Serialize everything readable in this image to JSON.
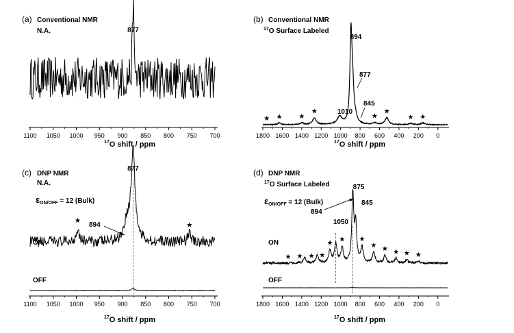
{
  "colors": {
    "trace": "#000000",
    "axis": "#000000",
    "ref_line": "#555555"
  },
  "chart_data": [
    {
      "type": "line",
      "panel": "(a)",
      "title": "Conventional NMR",
      "subtitle": "N.A.",
      "xlabel_sup": "17",
      "xlabel": "O shift / ppm",
      "xlim": [
        1100,
        700
      ],
      "x_reversed": true,
      "xticks": [
        1100,
        1050,
        1000,
        950,
        900,
        850,
        800,
        750,
        700
      ],
      "series": [
        {
          "baseline": 0.5,
          "noise": 0.5,
          "peaks": [
            {
              "x": 877,
              "height": 1.0,
              "width": 1.5
            }
          ]
        }
      ],
      "annotations": [
        {
          "text": "877",
          "x": 877
        }
      ]
    },
    {
      "type": "line",
      "panel": "(b)",
      "title": "Conventional NMR",
      "subtitle_sup": "17",
      "subtitle": "O Surface Labeled",
      "xlabel_sup": "17",
      "xlabel": "O shift / ppm",
      "xlim": [
        1800,
        -100
      ],
      "x_reversed": true,
      "xticks": [
        1800,
        1600,
        1400,
        1200,
        1000,
        800,
        600,
        400,
        200,
        0
      ],
      "series": [
        {
          "baseline": 0.0,
          "noise": 0.01,
          "peaks": [
            {
              "x": 894,
              "height": 1.0,
              "width": 12
            },
            {
              "x": 877,
              "height": 0.42,
              "width": 15
            },
            {
              "x": 845,
              "height": 0.05,
              "width": 20
            },
            {
              "x": 1010,
              "height": 0.09,
              "width": 30
            },
            {
              "x": 1270,
              "height": 0.08,
              "width": 22
            },
            {
              "x": 525,
              "height": 0.08,
              "width": 22
            },
            {
              "x": 1630,
              "height": 0.02,
              "width": 20
            },
            {
              "x": 1400,
              "height": 0.02,
              "width": 20
            },
            {
              "x": 650,
              "height": 0.02,
              "width": 20
            },
            {
              "x": 280,
              "height": 0.015,
              "width": 20
            },
            {
              "x": 155,
              "height": 0.02,
              "width": 20
            }
          ]
        }
      ],
      "annotations": [
        {
          "text": "894",
          "x": 894
        },
        {
          "text": "877",
          "x": 877
        },
        {
          "text": "845",
          "x": 845
        },
        {
          "text": "1010",
          "x": 1010
        }
      ],
      "markers": [
        1760,
        1630,
        1400,
        1270,
        650,
        525,
        280,
        155
      ]
    },
    {
      "type": "line",
      "panel": "(c)",
      "title": "DNP NMR",
      "subtitle": "N.A.",
      "enhancement_sym": "ε",
      "enhancement_sub": "ON/OFF",
      "enhancement_val": " = 12 (Bulk)",
      "xlabel_sup": "17",
      "xlabel": "O shift / ppm",
      "xlim": [
        1100,
        700
      ],
      "x_reversed": true,
      "xticks": [
        1100,
        1050,
        1000,
        950,
        900,
        850,
        800,
        750,
        700
      ],
      "series": [
        {
          "name": "ON",
          "baseline": 0.3,
          "noise": 0.12,
          "peaks": [
            {
              "x": 877,
              "height": 1.0,
              "width": 5
            },
            {
              "x": 890,
              "height": 0.22,
              "width": 8
            },
            {
              "x": 997,
              "height": 0.15,
              "width": 4
            },
            {
              "x": 755,
              "height": 0.1,
              "width": 4
            }
          ]
        },
        {
          "name": "OFF",
          "baseline": 0.0,
          "noise": 0.03,
          "peaks": [
            {
              "x": 877,
              "height": 0.1,
              "width": 4
            }
          ]
        }
      ],
      "annotations": [
        {
          "text": "877",
          "x": 877
        },
        {
          "text": "894",
          "x": 894
        }
      ],
      "markers": [
        997,
        755
      ]
    },
    {
      "type": "line",
      "panel": "(d)",
      "title": "DNP NMR",
      "subtitle_sup": "17",
      "subtitle": "O Surface Labeled",
      "enhancement_sym": "ε",
      "enhancement_sub": "ON/OFF",
      "enhancement_val": " = 12 (Bulk)",
      "xlabel_sup": "17",
      "xlabel": "O shift / ppm",
      "xlim": [
        1800,
        -100
      ],
      "x_reversed": true,
      "xticks": [
        1800,
        1600,
        1400,
        1200,
        1000,
        800,
        600,
        400,
        200,
        0
      ],
      "series": [
        {
          "name": "ON",
          "baseline": 0.0,
          "noise": 0.03,
          "peaks": [
            {
              "x": 875,
              "height": 1.0,
              "width": 12
            },
            {
              "x": 845,
              "height": 0.55,
              "width": 12
            },
            {
              "x": 1050,
              "height": 0.28,
              "width": 15
            },
            {
              "x": 985,
              "height": 0.22,
              "width": 15
            },
            {
              "x": 1110,
              "height": 0.18,
              "width": 15
            },
            {
              "x": 1240,
              "height": 0.12,
              "width": 15
            },
            {
              "x": 1370,
              "height": 0.08,
              "width": 15
            },
            {
              "x": 780,
              "height": 0.22,
              "width": 15
            },
            {
              "x": 660,
              "height": 0.16,
              "width": 15
            },
            {
              "x": 545,
              "height": 0.11,
              "width": 15
            },
            {
              "x": 430,
              "height": 0.07,
              "width": 15
            },
            {
              "x": 320,
              "height": 0.05,
              "width": 15
            },
            {
              "x": 200,
              "height": 0.03,
              "width": 15
            }
          ]
        },
        {
          "name": "OFF",
          "baseline": 0.0,
          "noise": 0.01,
          "peaks": [
            {
              "x": 875,
              "height": 0.05,
              "width": 12
            }
          ]
        }
      ],
      "annotations": [
        {
          "text": "875",
          "x": 875
        },
        {
          "text": "845",
          "x": 845
        },
        {
          "text": "894",
          "x": 894
        },
        {
          "text": "1050",
          "x": 1050
        }
      ],
      "markers": [
        1540,
        1420,
        1300,
        1190,
        1110,
        985,
        780,
        660,
        545,
        430,
        320,
        200
      ]
    }
  ]
}
